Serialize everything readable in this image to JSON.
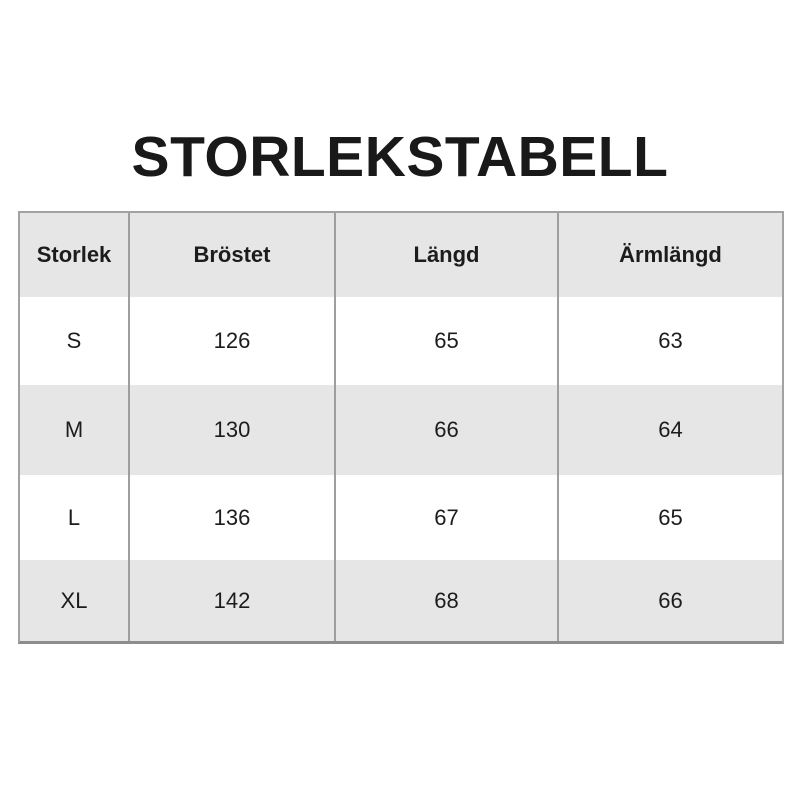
{
  "page": {
    "title": "STORLEKSTABELL"
  },
  "chart_data": {
    "type": "table",
    "title": "STORLEKSTABELL",
    "columns": [
      "Storlek",
      "Bröstet",
      "Längd",
      "Ärmlängd"
    ],
    "rows": [
      [
        "S",
        126,
        65,
        63
      ],
      [
        "M",
        130,
        66,
        64
      ],
      [
        "L",
        136,
        67,
        65
      ],
      [
        "XL",
        142,
        68,
        66
      ]
    ],
    "layout": {
      "header_background": "#e6e6e6",
      "alternating_row_background": "#e6e6e6",
      "row_background": "#ffffff",
      "grid_border_color": "#9e9e9e",
      "text_color": "#1c1c1c",
      "title_color": "#191919"
    }
  }
}
